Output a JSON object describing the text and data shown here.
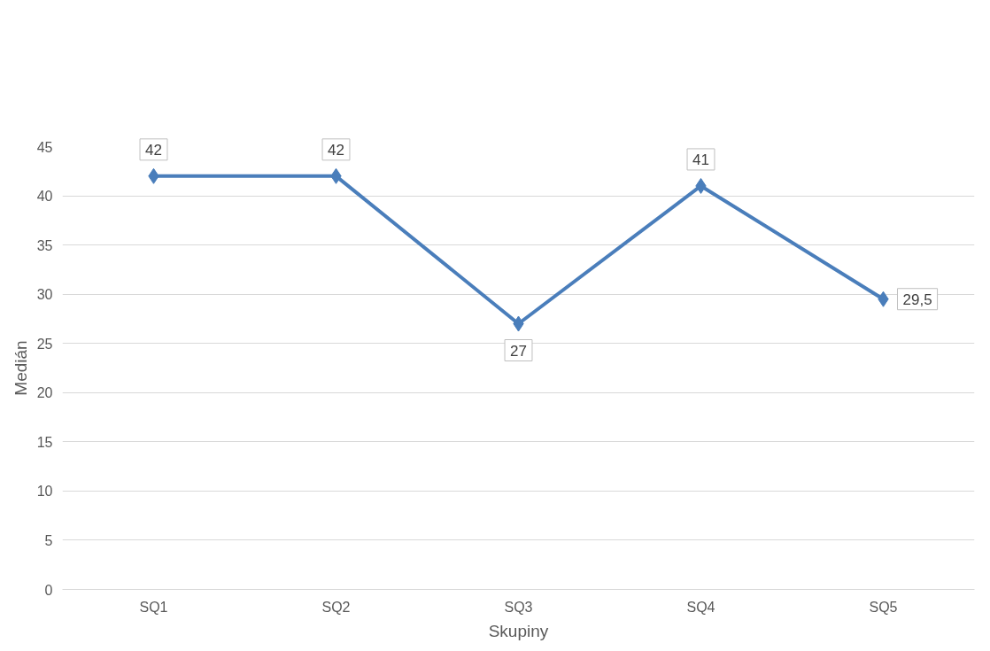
{
  "chart_data": {
    "type": "line",
    "xlabel": "Skupiny",
    "ylabel": "Medián",
    "categories": [
      "SQ1",
      "SQ2",
      "SQ3",
      "SQ4",
      "SQ5"
    ],
    "series": [
      {
        "color": "#4a7ebb",
        "values": [
          42,
          42,
          27,
          41,
          29.5
        ],
        "value_labels": [
          "42",
          "42",
          "27",
          "41",
          "29,5"
        ]
      }
    ],
    "ylim": [
      0,
      45
    ],
    "yticks": [
      0,
      5,
      10,
      15,
      20,
      25,
      30,
      35,
      40,
      45
    ],
    "grid": "y",
    "marker": "diamond",
    "line_style": "solid"
  }
}
